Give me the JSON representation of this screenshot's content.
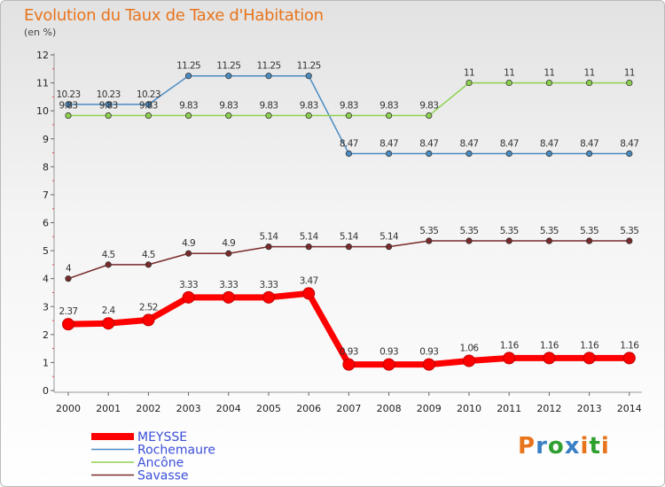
{
  "title": "Evolution du Taux de Taxe d'Habitation",
  "subtitle": "(en %)",
  "brand": {
    "letters": [
      "P",
      "r",
      "o",
      "x",
      "i",
      "t",
      "i"
    ],
    "colors": [
      "#e8741c",
      "#3a7fc4",
      "#2f9f2f",
      "#3a7fc4",
      "#e8741c",
      "#2f9f2f",
      "#e8741c"
    ]
  },
  "chart_data": {
    "type": "line",
    "title": "Evolution du Taux de Taxe d'Habitation",
    "ylabel": "(en %)",
    "xlabel": "",
    "ylim": [
      0,
      12
    ],
    "yticks": [
      0,
      1,
      2,
      3,
      4,
      5,
      6,
      7,
      8,
      9,
      10,
      11,
      12
    ],
    "grid": false,
    "legend_position": "bottom-left",
    "categories": [
      "2000",
      "2001",
      "2002",
      "2003",
      "2004",
      "2005",
      "2006",
      "2007",
      "2008",
      "2009",
      "2010",
      "2011",
      "2012",
      "2013",
      "2014"
    ],
    "series": [
      {
        "name": "MEYSSE",
        "color": "#ff0000",
        "values": [
          2.37,
          2.4,
          2.52,
          3.33,
          3.33,
          3.33,
          3.47,
          0.93,
          0.93,
          0.93,
          1.06,
          1.16,
          1.16,
          1.16,
          1.16
        ],
        "labels": [
          "2.37",
          "2.4",
          "2.52",
          "3.33",
          "3.33",
          "3.33",
          "3.47",
          "0.93",
          "0.93",
          "0.93",
          "1.06",
          "1.16",
          "1.16",
          "1.16",
          "1.16"
        ]
      },
      {
        "name": "Rochemaure",
        "color": "#4a8bc2",
        "values": [
          10.23,
          10.23,
          10.23,
          11.25,
          11.25,
          11.25,
          11.25,
          8.47,
          8.47,
          8.47,
          8.47,
          8.47,
          8.47,
          8.47,
          8.47
        ],
        "labels": [
          "10.23",
          "10.23",
          "10.23",
          "11.25",
          "11.25",
          "11.25",
          "11.25",
          "8.47",
          "8.47",
          "8.47",
          "8.47",
          "8.47",
          "8.47",
          "8.47",
          "8.47"
        ]
      },
      {
        "name": "Ancône",
        "color": "#8fd14f",
        "values": [
          9.83,
          9.83,
          9.83,
          9.83,
          9.83,
          9.83,
          9.83,
          9.83,
          9.83,
          9.83,
          11,
          11,
          11,
          11,
          11
        ],
        "labels": [
          "9.83",
          "9.83",
          "9.83",
          "9.83",
          "9.83",
          "9.83",
          "9.83",
          "9.83",
          "9.83",
          "9.83",
          "11",
          "11",
          "11",
          "11",
          "11"
        ]
      },
      {
        "name": "Savasse",
        "color": "#7a2a2a",
        "values": [
          4,
          4.5,
          4.5,
          4.9,
          4.9,
          5.14,
          5.14,
          5.14,
          5.14,
          5.35,
          5.35,
          5.35,
          5.35,
          5.35,
          5.35
        ],
        "labels": [
          "4",
          "4.5",
          "4.5",
          "4.9",
          "4.9",
          "5.14",
          "5.14",
          "5.14",
          "5.14",
          "5.35",
          "5.35",
          "5.35",
          "5.35",
          "5.35",
          "5.35"
        ]
      }
    ]
  }
}
